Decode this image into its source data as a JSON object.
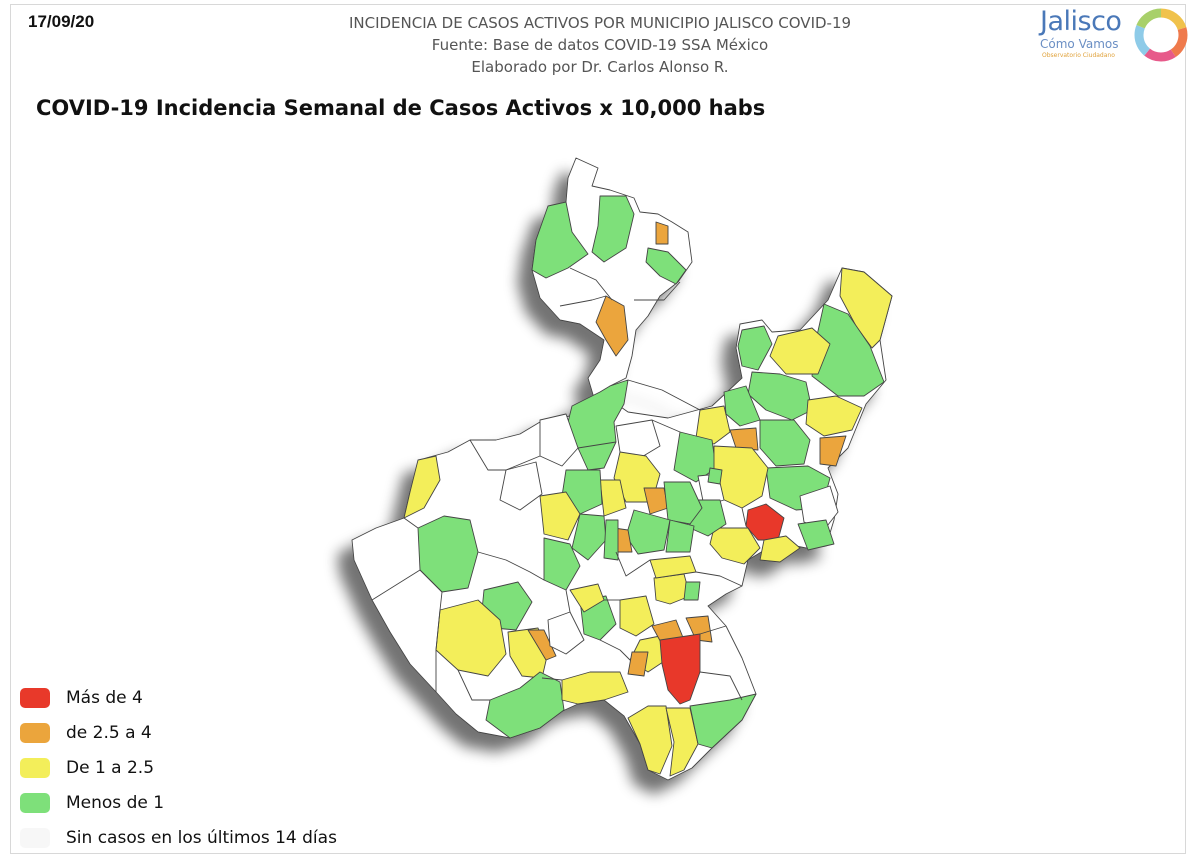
{
  "date": "17/09/20",
  "header": {
    "line1": "INCIDENCIA DE CASOS ACTIVOS POR MUNICIPIO JALISCO COVID-19",
    "line2": "Fuente: Base de datos COVID-19 SSA México",
    "line3": "Elaborado por Dr. Carlos Alonso R."
  },
  "title": "COVID-19 Incidencia Semanal de Casos Activos x 10,000 habs",
  "logo": {
    "name": "Jalisco",
    "subtitle": "Cómo Vamos",
    "tagline": "Observatorio Ciudadano"
  },
  "colors": {
    "red": "#e8392a",
    "orange": "#eba53c",
    "yellow": "#f3ee5a",
    "green": "#7ee07a",
    "white": "#ffffff",
    "border": "#444444"
  },
  "legend": [
    {
      "label": "Más de 4",
      "color": "#e8392a"
    },
    {
      "label": "de 2.5 a 4",
      "color": "#eba53c"
    },
    {
      "label": "De 1 a 2.5",
      "color": "#f3ee5a"
    },
    {
      "label": "Menos de 1",
      "color": "#7ee07a"
    },
    {
      "label": "Sin casos en los últimos 14 días",
      "color": "#f7f7f7"
    }
  ]
}
